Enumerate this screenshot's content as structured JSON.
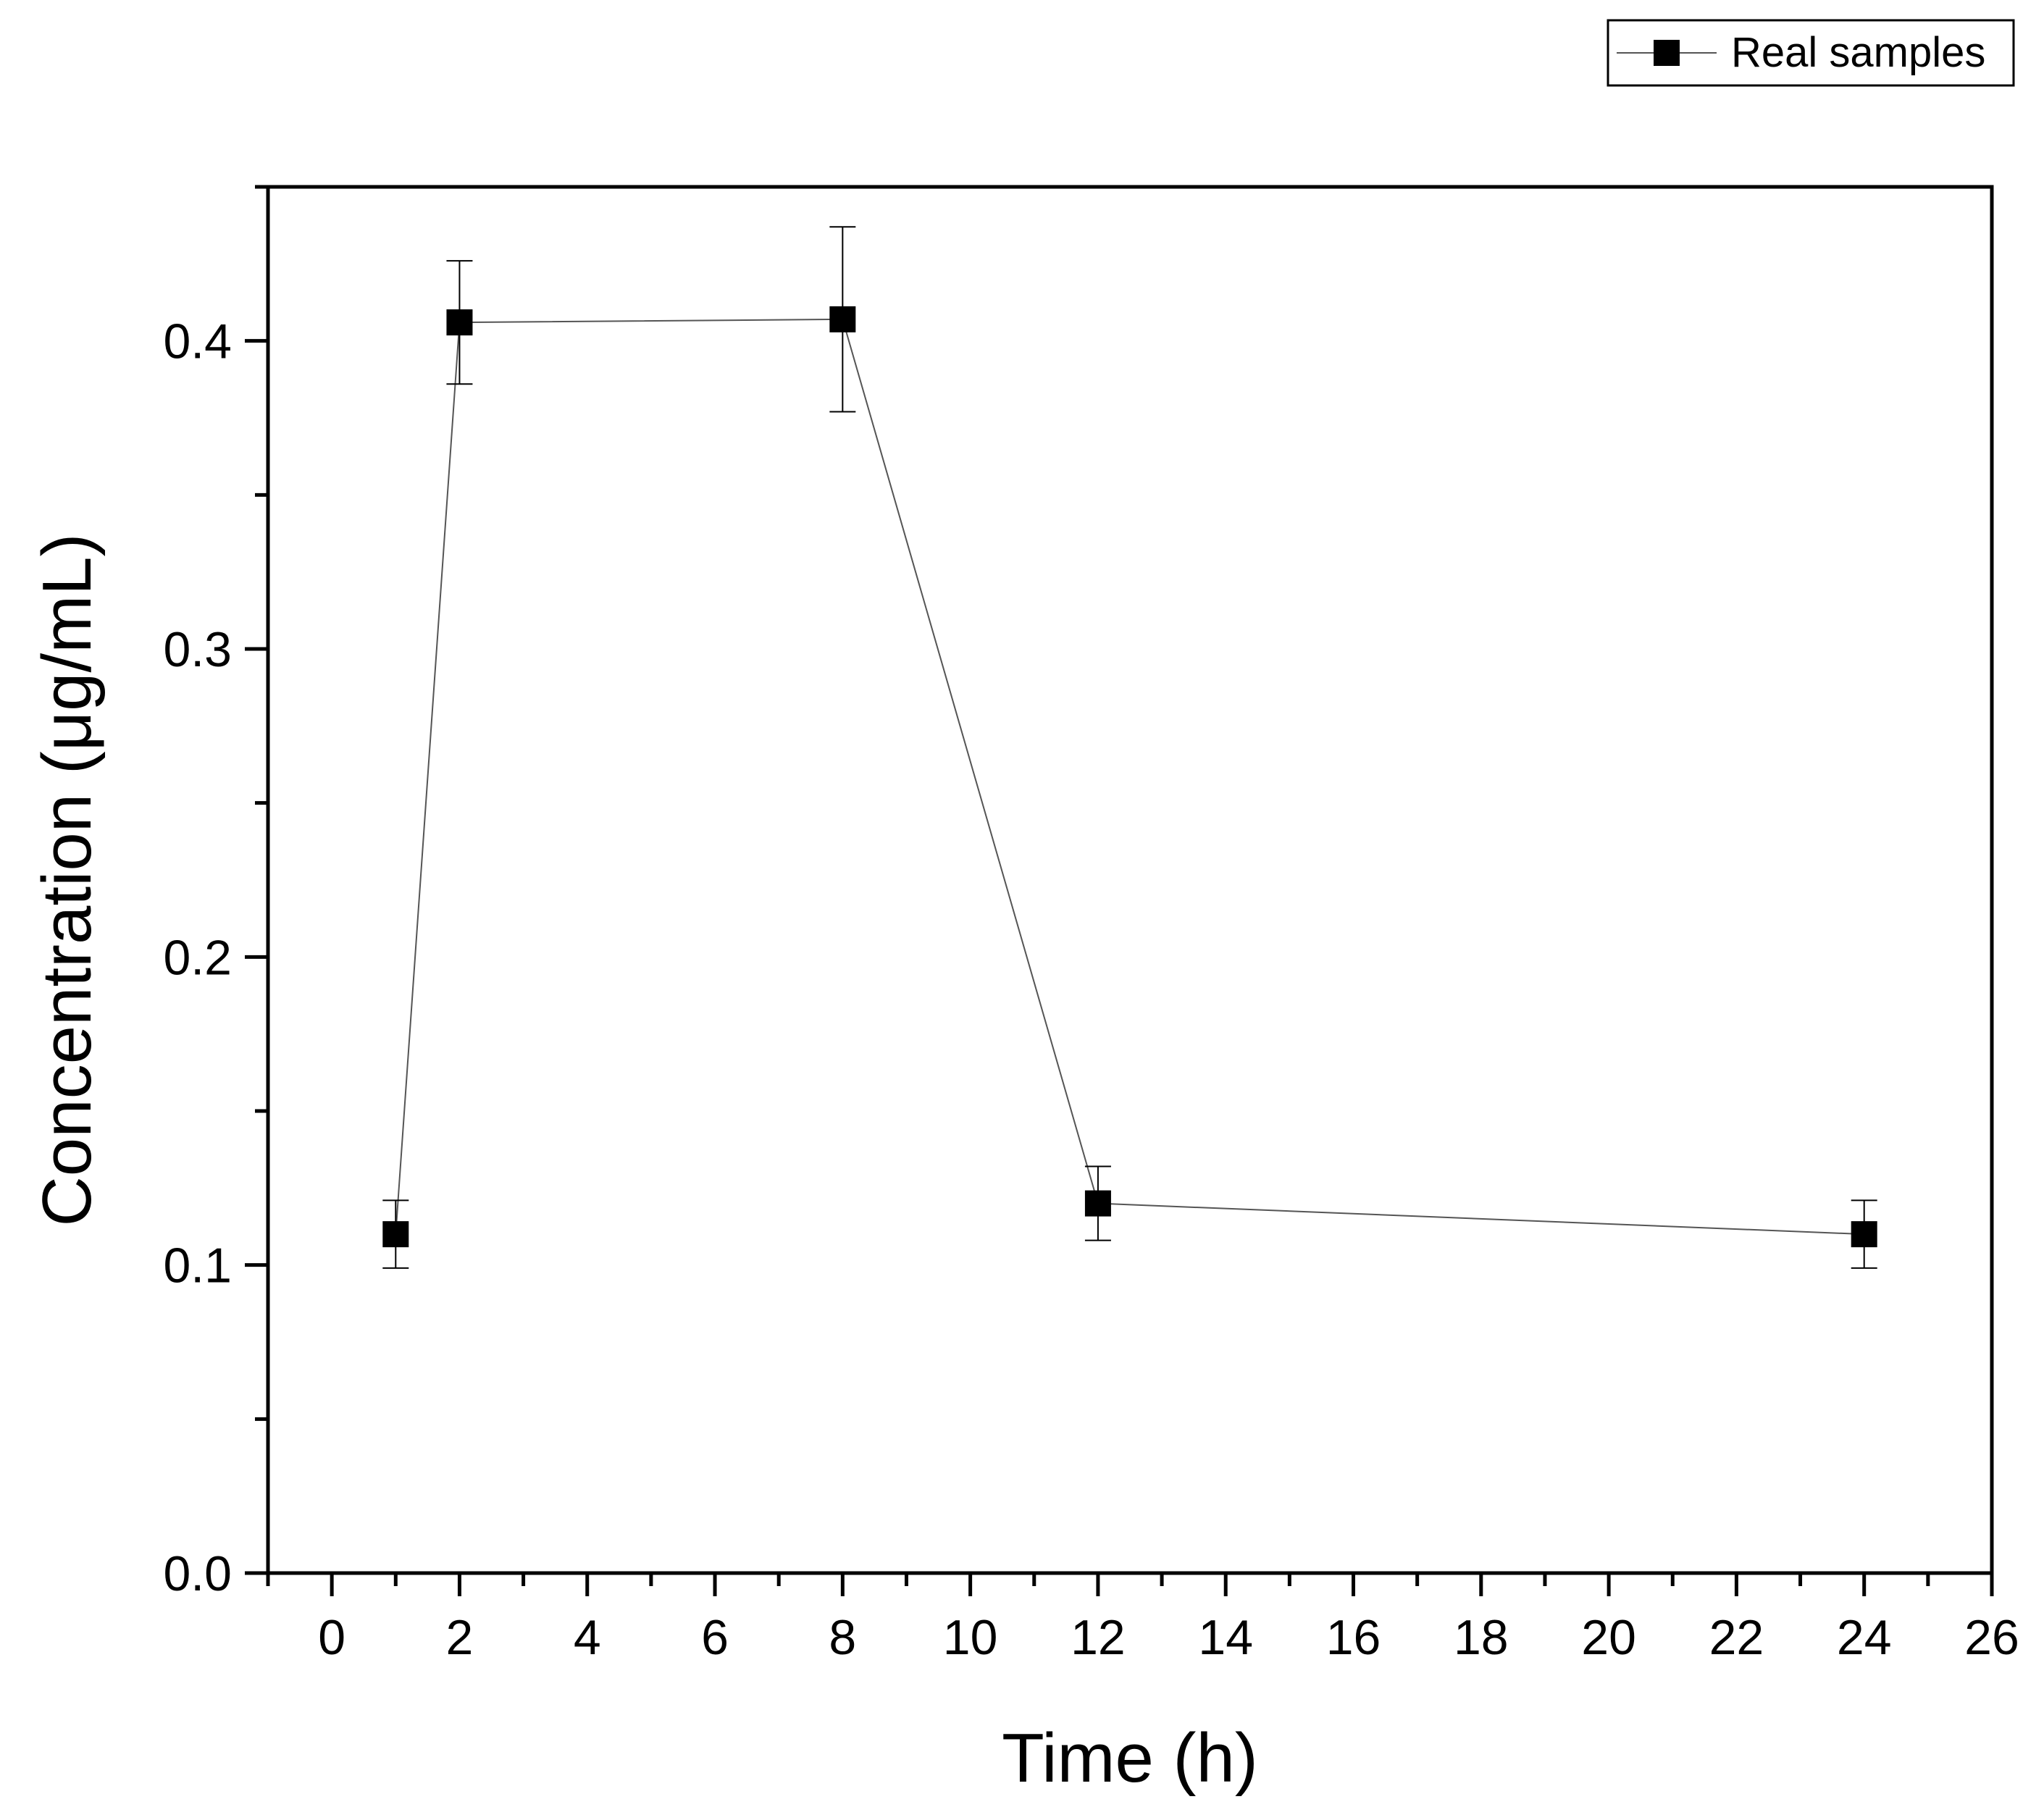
{
  "chart_data": {
    "type": "scatter",
    "title": "",
    "xlabel": "Time (h)",
    "ylabel": "Concentration (μg/mL)",
    "xlim": [
      -1,
      26
    ],
    "ylim": [
      0,
      0.45
    ],
    "x_ticks": [
      0,
      2,
      4,
      6,
      8,
      10,
      12,
      14,
      16,
      18,
      20,
      22,
      24,
      26
    ],
    "x_tick_labels": [
      "0",
      "2",
      "4",
      "6",
      "8",
      "10",
      "12",
      "14",
      "16",
      "18",
      "20",
      "22",
      "24",
      "26"
    ],
    "y_ticks": [
      0,
      0.1,
      0.2,
      0.3,
      0.4
    ],
    "y_tick_labels": [
      "0.0",
      "0.1",
      "0.2",
      "0.3",
      "0.4"
    ],
    "grid": false,
    "legend_position": "top-right",
    "series": [
      {
        "name": "Real samples",
        "marker": "square",
        "line": true,
        "color": "#000000",
        "line_color": "#555555",
        "x": [
          1,
          2,
          8,
          12,
          24
        ],
        "y": [
          0.11,
          0.406,
          0.407,
          0.12,
          0.11
        ],
        "error": [
          0.011,
          0.02,
          0.03,
          0.012,
          0.011
        ]
      }
    ]
  }
}
